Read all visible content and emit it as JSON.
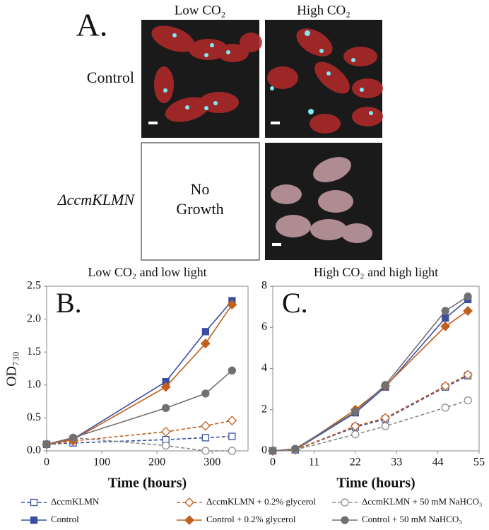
{
  "panel_a": {
    "label": "A.",
    "columns": [
      "Low CO₂",
      "High CO₂"
    ],
    "rows": [
      "Control",
      "ΔccmKLMN"
    ],
    "no_growth": [
      "No",
      "Growth"
    ]
  },
  "chart_data": [
    {
      "type": "line",
      "annotation": "B.",
      "title": "Low CO₂ and low light",
      "x_label": "Time (hours)",
      "y_label": "OD₇₃₀",
      "x": [
        0,
        48,
        216,
        288,
        336
      ],
      "xlim": [
        0,
        365
      ],
      "xticks": [
        0,
        100,
        200,
        300
      ],
      "ylim": [
        0,
        2.5
      ],
      "yticks": [
        {
          "value": 0,
          "label": "0.0"
        },
        0.5,
        {
          "value": 1,
          "label": "1.0"
        },
        1.5,
        {
          "value": 2,
          "label": "2.0"
        },
        2.5
      ],
      "series": [
        {
          "name": "ΔccmKLMN",
          "color": "#3a4fa0",
          "dash": true,
          "marker": "square",
          "filled": false,
          "values": [
            0.1,
            0.12,
            0.17,
            0.2,
            0.22
          ]
        },
        {
          "name": "Control",
          "color": "#3a4fa0",
          "dash": false,
          "marker": "square",
          "filled": true,
          "values": [
            0.1,
            0.18,
            1.05,
            1.81,
            2.28
          ]
        },
        {
          "name": "ΔccmKLMN + 0.2% glycerol",
          "color": "#c0601c",
          "dash": true,
          "marker": "diamond",
          "filled": false,
          "values": [
            0.1,
            0.15,
            0.29,
            0.38,
            0.46
          ]
        },
        {
          "name": "Control + 0.2% glycerol",
          "color": "#c0601c",
          "dash": false,
          "marker": "diamond",
          "filled": true,
          "values": [
            0.1,
            0.17,
            0.97,
            1.63,
            2.22
          ]
        },
        {
          "name": "ΔccmKLMN + 50 mM NaHCO₃",
          "color": "#8a8a8a",
          "dash": true,
          "marker": "circle",
          "filled": false,
          "values": [
            0.1,
            0.2,
            0.08,
            0.0,
            0.0
          ]
        },
        {
          "name": "Control + 50 mM NaHCO₃",
          "color": "#707070",
          "dash": false,
          "marker": "circle",
          "filled": true,
          "values": [
            0.1,
            0.2,
            0.65,
            0.87,
            1.22
          ]
        }
      ]
    },
    {
      "type": "line",
      "annotation": "C.",
      "title": "High CO₂ and high light",
      "x_label": "Time (hours)",
      "x": [
        0,
        6,
        22,
        30,
        46,
        52
      ],
      "xlim": [
        0,
        55
      ],
      "xticks": [
        0,
        11,
        22,
        33,
        44,
        55
      ],
      "ylim": [
        0,
        8
      ],
      "yticks": [
        0,
        2,
        4,
        6,
        8
      ],
      "series": [
        {
          "color": "#3a4fa0",
          "dash": true,
          "marker": "square",
          "filled": false,
          "values": [
            0,
            0.05,
            1.15,
            1.55,
            3.1,
            3.65
          ]
        },
        {
          "color": "#3a4fa0",
          "dash": false,
          "marker": "square",
          "filled": true,
          "values": [
            0,
            0.05,
            1.85,
            3.1,
            6.45,
            7.35
          ]
        },
        {
          "color": "#c0601c",
          "dash": true,
          "marker": "diamond",
          "filled": false,
          "values": [
            0,
            0.05,
            1.2,
            1.6,
            3.15,
            3.7
          ]
        },
        {
          "color": "#c0601c",
          "dash": false,
          "marker": "diamond",
          "filled": true,
          "values": [
            0,
            0.05,
            2.0,
            3.15,
            6.05,
            6.8
          ]
        },
        {
          "color": "#8a8a8a",
          "dash": true,
          "marker": "circle",
          "filled": false,
          "values": [
            0,
            0.05,
            0.8,
            1.2,
            2.1,
            2.45
          ]
        },
        {
          "color": "#707070",
          "dash": false,
          "marker": "circle",
          "filled": true,
          "values": [
            0,
            0.1,
            1.9,
            3.2,
            6.8,
            7.5
          ]
        }
      ]
    }
  ]
}
